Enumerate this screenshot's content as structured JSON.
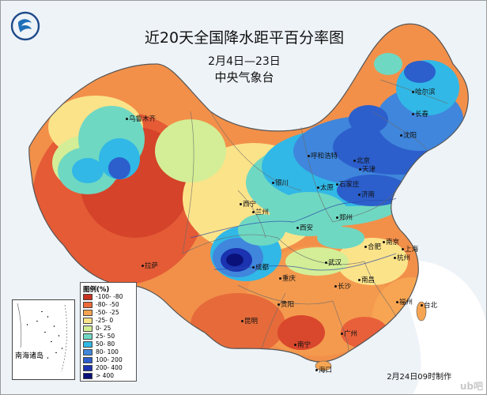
{
  "title": "近20天全国降水距平百分率图",
  "date_range": "2月4日—23日",
  "publisher": "中央气象台",
  "footer": "2月24日09时制作",
  "watermark": "ub吧",
  "legend": {
    "title": "图例(%)",
    "items": [
      {
        "label": "-100- -80",
        "color": "#c8321e"
      },
      {
        "label": "-80- -50",
        "color": "#ee6a3a"
      },
      {
        "label": "-50- -25",
        "color": "#f7a552"
      },
      {
        "label": "-25- 0",
        "color": "#fbe38a"
      },
      {
        "label": "0- 25",
        "color": "#d3ee96"
      },
      {
        "label": "25- 50",
        "color": "#6fd8c2"
      },
      {
        "label": "50- 80",
        "color": "#31b8e6"
      },
      {
        "label": "80- 100",
        "color": "#3f86dc"
      },
      {
        "label": "100- 200",
        "color": "#2c5fcc"
      },
      {
        "label": "200- 400",
        "color": "#1b33b0"
      },
      {
        "label": "> 400",
        "color": "#0a127a"
      }
    ]
  },
  "inset_label": "南海诸岛",
  "cities": [
    {
      "name": "乌鲁木齐"
    },
    {
      "name": "哈尔滨"
    },
    {
      "name": "长春"
    },
    {
      "name": "沈阳"
    },
    {
      "name": "呼和浩特"
    },
    {
      "name": "北京"
    },
    {
      "name": "天津"
    },
    {
      "name": "石家庄"
    },
    {
      "name": "太原"
    },
    {
      "name": "银川"
    },
    {
      "name": "济南"
    },
    {
      "name": "西宁"
    },
    {
      "name": "兰州"
    },
    {
      "name": "郑州"
    },
    {
      "name": "西安"
    },
    {
      "name": "拉萨"
    },
    {
      "name": "成都"
    },
    {
      "name": "重庆"
    },
    {
      "name": "武汉"
    },
    {
      "name": "合肥"
    },
    {
      "name": "南京"
    },
    {
      "name": "上海"
    },
    {
      "name": "杭州"
    },
    {
      "name": "长沙"
    },
    {
      "name": "南昌"
    },
    {
      "name": "贵阳"
    },
    {
      "name": "昆明"
    },
    {
      "name": "福州"
    },
    {
      "name": "台北"
    },
    {
      "name": "南宁"
    },
    {
      "name": "广州"
    },
    {
      "name": "海口"
    }
  ]
}
